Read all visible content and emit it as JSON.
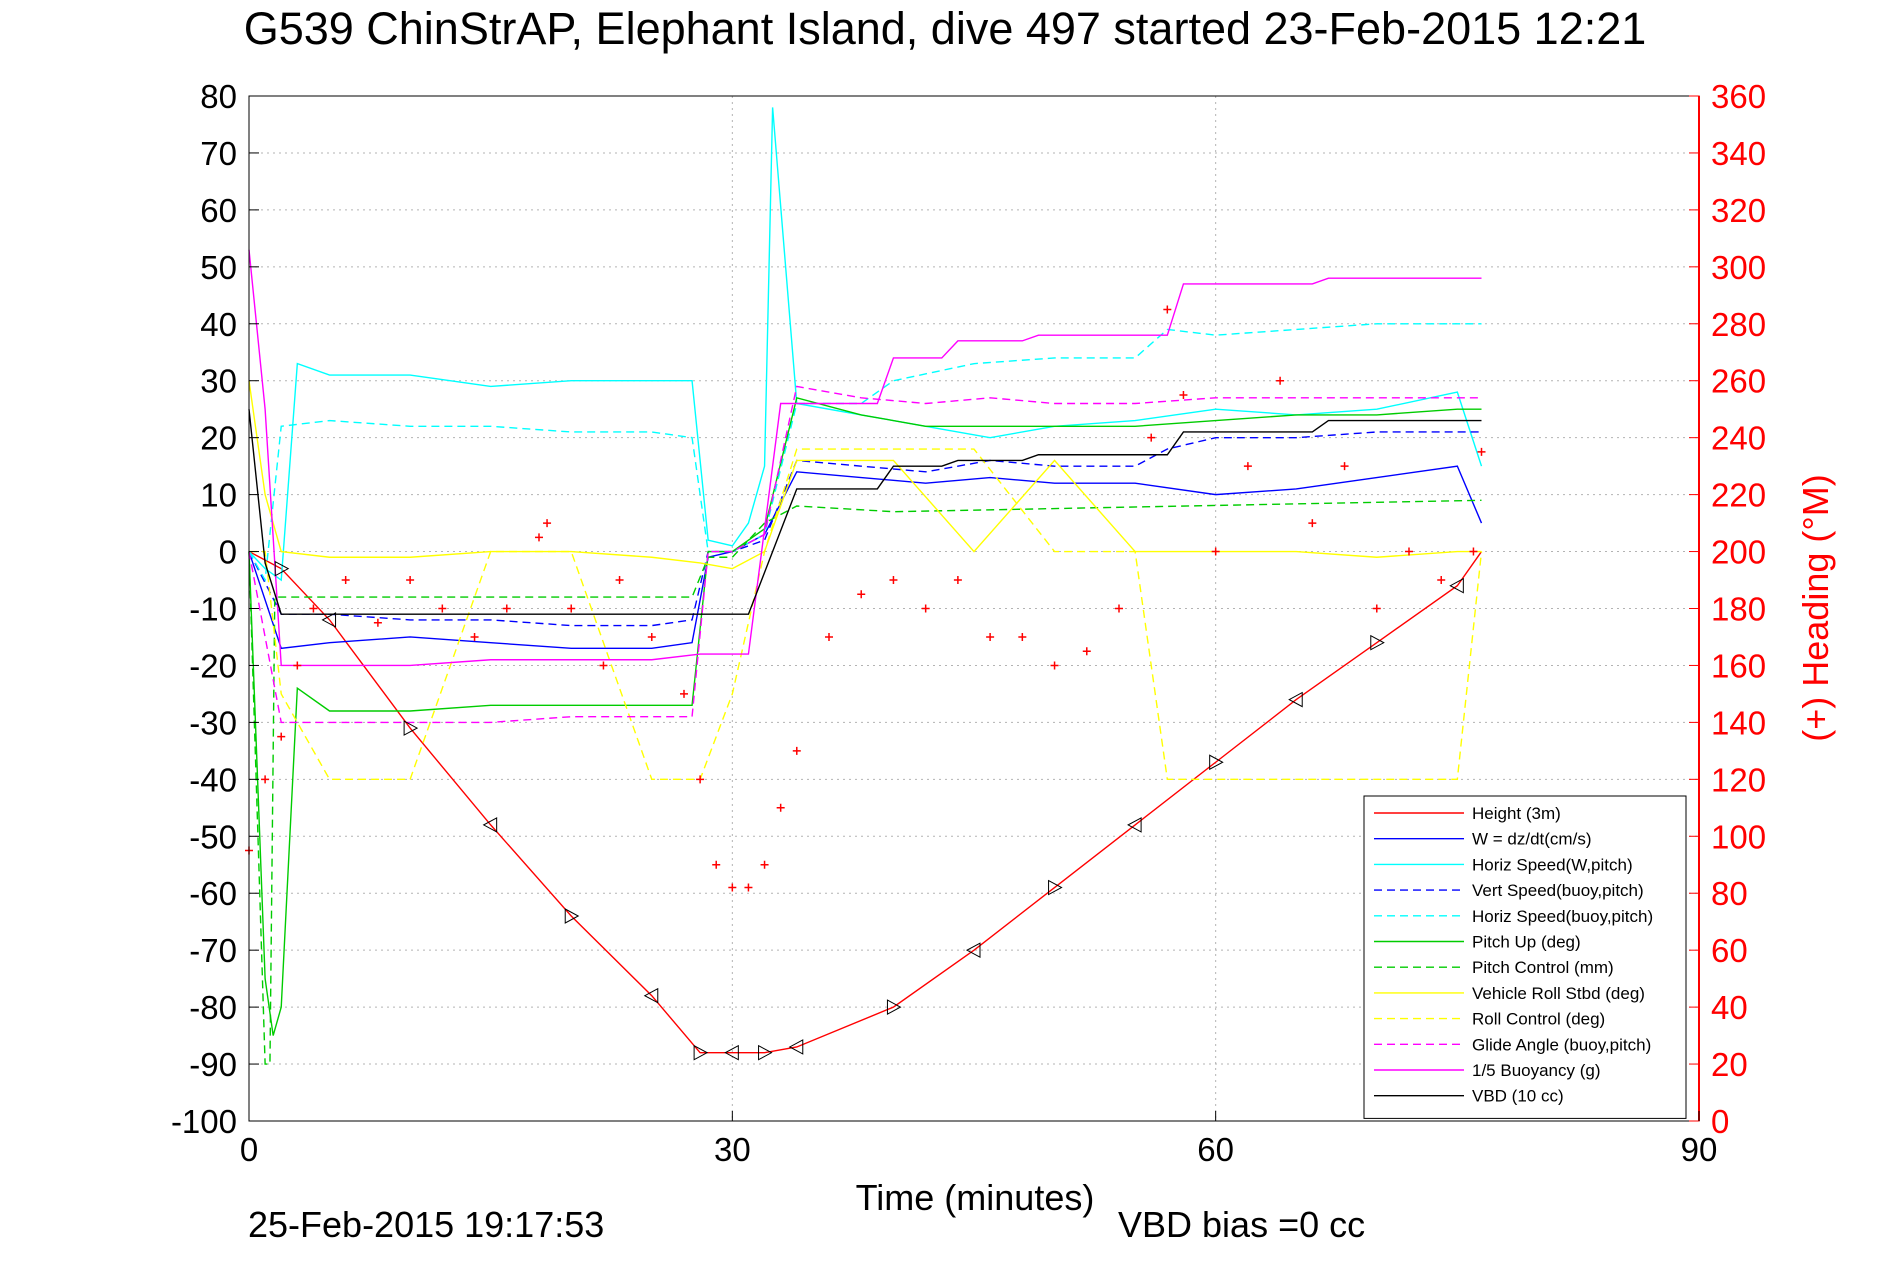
{
  "title": "G539 ChinStrAP, Elephant Island, dive 497 started 23-Feb-2015 12:21",
  "footer": {
    "timestamp": "25-Feb-2015 19:17:53",
    "vbd_bias": "VBD bias =0 cc"
  },
  "chart_data": {
    "type": "line",
    "title": "G539 ChinStrAP, Elephant Island, dive 497 started 23-Feb-2015 12:21",
    "xlabel": "Time (minutes)",
    "ylabel_left": "",
    "ylabel_right": "(+) Heading (°M)",
    "xlim": [
      0,
      90
    ],
    "ylim": [
      -100,
      80
    ],
    "ylim_right": [
      0,
      360
    ],
    "x_ticks": [
      0,
      30,
      60,
      90
    ],
    "y_ticks": [
      80,
      70,
      60,
      50,
      40,
      30,
      20,
      10,
      0,
      -10,
      -20,
      -30,
      -40,
      -50,
      -60,
      -70,
      -80,
      -90,
      -100
    ],
    "y_ticks_right": [
      360,
      340,
      320,
      300,
      280,
      260,
      240,
      220,
      200,
      180,
      160,
      140,
      120,
      100,
      80,
      60,
      40,
      20,
      0
    ],
    "grid": true,
    "legend_position": "bottom-right",
    "series": [
      {
        "name": "Height (3m)",
        "color": "#ff0000",
        "dash": "solid",
        "x": [
          0,
          2,
          5,
          10,
          15,
          20,
          25,
          28,
          30,
          32,
          34,
          40,
          45,
          50,
          55,
          60,
          65,
          70,
          75,
          76.5
        ],
        "y": [
          0,
          -3,
          -12,
          -31,
          -48,
          -64,
          -78,
          -88,
          -88,
          -88,
          -87,
          -80,
          -70,
          -59,
          -48,
          -37,
          -26,
          -16,
          -6,
          0
        ]
      },
      {
        "name": "W = dz/dt(cm/s)",
        "color": "#0000ff",
        "dash": "solid",
        "x": [
          0,
          2,
          5,
          10,
          15,
          20,
          25,
          27.5,
          28.5,
          30,
          32,
          34,
          38,
          42,
          46,
          50,
          55,
          60,
          65,
          70,
          75,
          76.5
        ],
        "y": [
          0,
          -17,
          -16,
          -15,
          -16,
          -17,
          -17,
          -16,
          -1,
          0,
          3,
          14,
          13,
          12,
          13,
          12,
          12,
          10,
          11,
          13,
          15,
          5
        ]
      },
      {
        "name": "Horiz Speed(W,pitch)",
        "color": "#00ffff",
        "dash": "solid",
        "x": [
          0,
          1,
          2,
          3,
          5,
          10,
          15,
          20,
          25,
          27.5,
          28.5,
          30,
          31,
          32,
          32.5,
          34,
          38,
          42,
          46,
          50,
          55,
          60,
          65,
          70,
          75,
          76.5
        ],
        "y": [
          0,
          -3,
          -5,
          33,
          31,
          31,
          29,
          30,
          30,
          30,
          2,
          1,
          5,
          15,
          78,
          26,
          24,
          22,
          20,
          22,
          23,
          25,
          24,
          25,
          28,
          15
        ]
      },
      {
        "name": "Vert Speed(buoy,pitch)",
        "color": "#0000ff",
        "dash": "dashed",
        "x": [
          0,
          2,
          5,
          10,
          15,
          20,
          25,
          27.5,
          28.5,
          30,
          32,
          34,
          38,
          42,
          46,
          50,
          55,
          57,
          60,
          65,
          70,
          75,
          76.5
        ],
        "y": [
          0,
          -11,
          -11,
          -12,
          -12,
          -13,
          -13,
          -12,
          0,
          0,
          2,
          16,
          15,
          14,
          16,
          15,
          15,
          18,
          20,
          20,
          21,
          21,
          21
        ]
      },
      {
        "name": "Horiz Speed(buoy,pitch)",
        "color": "#00ffff",
        "dash": "dashed",
        "x": [
          0,
          1,
          2,
          5,
          10,
          15,
          20,
          25,
          27.5,
          28.5,
          30,
          32,
          34,
          38,
          40,
          45,
          50,
          55,
          57,
          60,
          65,
          70,
          75,
          76.5
        ],
        "y": [
          0,
          -5,
          22,
          23,
          22,
          22,
          21,
          21,
          20,
          0,
          0,
          3,
          26,
          26,
          30,
          33,
          34,
          34,
          39,
          38,
          39,
          40,
          40,
          40
        ]
      },
      {
        "name": "Pitch Up (deg)",
        "color": "#00cc00",
        "dash": "solid",
        "x": [
          0,
          1,
          1.5,
          2,
          3,
          5,
          10,
          15,
          20,
          25,
          27.5,
          28.5,
          30,
          32,
          34,
          38,
          42,
          46,
          50,
          55,
          60,
          65,
          70,
          75,
          76.5
        ],
        "y": [
          0,
          -75,
          -85,
          -80,
          -24,
          -28,
          -28,
          -27,
          -27,
          -27,
          -27,
          0,
          0,
          4,
          27,
          24,
          22,
          22,
          22,
          22,
          23,
          24,
          24,
          25,
          25
        ]
      },
      {
        "name": "Pitch Control (mm)",
        "color": "#00cc00",
        "dash": "dashed",
        "x": [
          0,
          1,
          1.3,
          1.6,
          2,
          5,
          27.5,
          28.5,
          30,
          32,
          34,
          40,
          76.5
        ],
        "y": [
          0,
          -90,
          -90,
          -8,
          -8,
          -8,
          -8,
          -1,
          -1,
          5,
          8,
          7,
          9
        ]
      },
      {
        "name": "Vehicle Roll Stbd (deg)",
        "color": "#ffff00",
        "dash": "solid",
        "x": [
          0,
          1,
          2,
          5,
          10,
          15,
          20,
          25,
          28,
          30,
          32,
          34,
          40,
          45,
          50,
          55,
          60,
          65,
          70,
          75,
          76.5
        ],
        "y": [
          30,
          10,
          0,
          -1,
          -1,
          0,
          0,
          -1,
          -2,
          -3,
          0,
          16,
          16,
          0,
          16,
          0,
          0,
          0,
          -1,
          0,
          0
        ]
      },
      {
        "name": "Roll Control (deg)",
        "color": "#ffff00",
        "dash": "dashed",
        "x": [
          0,
          1,
          2,
          5,
          10,
          15,
          20,
          25,
          28,
          30,
          32,
          34,
          40,
          45,
          50,
          55,
          57,
          60,
          65,
          70,
          75,
          76.5
        ],
        "y": [
          0,
          0,
          -25,
          -40,
          -40,
          0,
          0,
          -40,
          -40,
          -25,
          0,
          18,
          18,
          18,
          0,
          0,
          -40,
          -40,
          -40,
          -40,
          -40,
          0
        ]
      },
      {
        "name": "Glide Angle (buoy,pitch)",
        "color": "#ff00ff",
        "dash": "dashed",
        "x": [
          0,
          2,
          5,
          10,
          15,
          20,
          25,
          27.5,
          28.5,
          30,
          32,
          34,
          38,
          42,
          46,
          50,
          55,
          60,
          65,
          70,
          75,
          76.5
        ],
        "y": [
          0,
          -30,
          -30,
          -30,
          -30,
          -29,
          -29,
          -29,
          0,
          0,
          3,
          29,
          27,
          26,
          27,
          26,
          26,
          27,
          27,
          27,
          27,
          27
        ]
      },
      {
        "name": "1/5 Buoyancy (g)",
        "color": "#ff00ff",
        "dash": "solid",
        "x": [
          0,
          1,
          2,
          5,
          10,
          15,
          20,
          25,
          28,
          30,
          31,
          33,
          39,
          40,
          43,
          44,
          48,
          49,
          57,
          58,
          66,
          67,
          76.5
        ],
        "y": [
          53,
          25,
          -20,
          -20,
          -20,
          -19,
          -19,
          -19,
          -18,
          -18,
          -18,
          26,
          26,
          34,
          34,
          37,
          37,
          38,
          38,
          47,
          47,
          48,
          48
        ]
      },
      {
        "name": "VBD (10 cc)",
        "color": "#000000",
        "dash": "solid",
        "x": [
          0,
          1,
          2,
          3,
          28,
          31,
          34,
          39,
          40,
          43,
          44,
          48,
          49,
          57,
          58,
          66,
          67,
          76.5
        ],
        "y": [
          25,
          -2,
          -11,
          -11,
          -11,
          -11,
          11,
          11,
          15,
          15,
          16,
          16,
          17,
          17,
          21,
          21,
          23,
          23
        ]
      },
      {
        "name": "",
        "axis": "right",
        "color": "#ff0000",
        "marker": "+",
        "x": [
          0,
          1,
          2,
          3,
          4,
          6,
          8,
          10,
          12,
          14,
          16,
          18,
          18.5,
          20,
          22,
          23,
          25,
          27,
          28,
          29,
          30,
          31,
          32,
          33,
          34,
          36,
          38,
          40,
          42,
          44,
          46,
          48,
          50,
          52,
          54,
          56,
          57,
          58,
          60,
          62,
          64,
          66,
          68,
          70,
          72,
          74,
          76,
          76.5
        ],
        "y": [
          95,
          120,
          135,
          160,
          180,
          190,
          175,
          190,
          180,
          170,
          180,
          205,
          210,
          180,
          160,
          190,
          170,
          150,
          120,
          90,
          82,
          82,
          90,
          110,
          130,
          170,
          185,
          190,
          180,
          190,
          170,
          170,
          160,
          165,
          180,
          240,
          285,
          255,
          200,
          230,
          260,
          210,
          230,
          180,
          200,
          190,
          200,
          235
        ]
      }
    ]
  },
  "colors": {
    "axis": "#000000",
    "right_axis": "#ff0000",
    "grid": "#b3b3b3",
    "background": "#ffffff"
  }
}
